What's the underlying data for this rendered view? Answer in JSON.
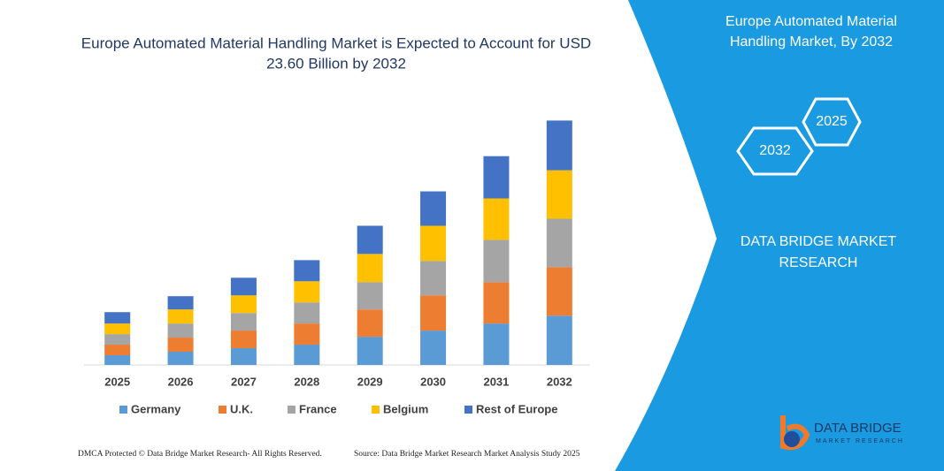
{
  "chart_data": {
    "type": "stacked_bar",
    "title": "Europe Automated Material Handling Market is Expected to Account for USD 23.60 Billion by 2032",
    "categories": [
      "2025",
      "2026",
      "2027",
      "2028",
      "2029",
      "2030",
      "2031",
      "2032"
    ],
    "series": [
      {
        "name": "Germany",
        "color": "#5b9bd5",
        "values": [
          0.94,
          1.28,
          1.62,
          1.96,
          2.72,
          3.32,
          4.0,
          4.76
        ]
      },
      {
        "name": "U.K.",
        "color": "#ed7d31",
        "values": [
          1.02,
          1.36,
          1.7,
          2.04,
          2.64,
          3.4,
          4.0,
          4.68
        ]
      },
      {
        "name": "France",
        "color": "#a5a5a5",
        "values": [
          1.02,
          1.36,
          1.7,
          2.04,
          2.64,
          3.32,
          4.08,
          4.68
        ]
      },
      {
        "name": "Belgium",
        "color": "#ffc000",
        "values": [
          1.02,
          1.36,
          1.7,
          2.04,
          2.72,
          3.4,
          4.0,
          4.68
        ]
      },
      {
        "name": "Rest of Europe",
        "color": "#4472c4",
        "values": [
          1.1,
          1.28,
          1.7,
          2.04,
          2.72,
          3.32,
          4.08,
          4.8
        ]
      }
    ],
    "ylim": [
      0,
      25
    ]
  },
  "panel": {
    "title": "Europe Automated Material Handling Market, By 2032",
    "hex_front": "2032",
    "hex_back": "2025",
    "company": "DATA BRIDGE MARKET RESEARCH"
  },
  "logo": {
    "name": "DATA BRIDGE",
    "tagline": "MARKET RESEARCH"
  },
  "footer": {
    "left": "DMCA Protected © Data Bridge Market Research- All Rights Reserved.",
    "right": "Source: Data Bridge Market Research Market Analysis Study 2025"
  }
}
